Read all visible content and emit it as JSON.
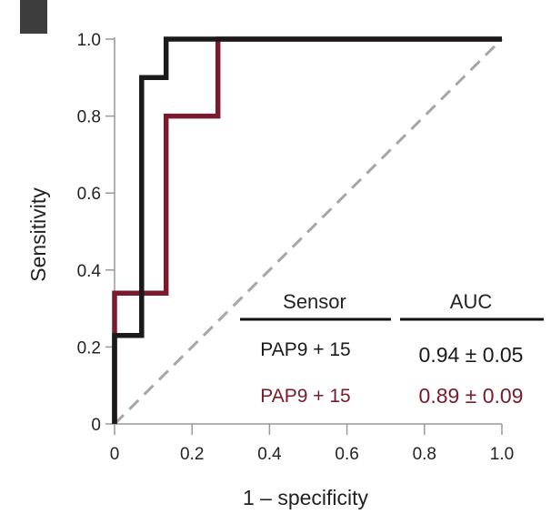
{
  "chart_data": {
    "type": "line",
    "title": "",
    "xlabel": "1 – specificity",
    "ylabel": "Sensitivity",
    "xlim": [
      0,
      1.0
    ],
    "ylim": [
      0,
      1.0
    ],
    "x_ticks": [
      0,
      0.2,
      0.4,
      0.6,
      0.8,
      1.0
    ],
    "x_tick_labels": [
      "0",
      "0.2",
      "0.4",
      "0.6",
      "0.8",
      "1.0"
    ],
    "y_ticks": [
      0,
      0.2,
      0.4,
      0.6,
      0.8,
      1.0
    ],
    "y_tick_labels": [
      "0",
      "0.2",
      "0.4",
      "0.6",
      "0.8",
      "1.0"
    ],
    "grid": false,
    "series": [
      {
        "color": "#1a1a1a",
        "x": [
          0,
          0,
          0.07,
          0.07,
          0.133,
          0.133,
          1.0
        ],
        "y": [
          0,
          0.23,
          0.23,
          0.9,
          0.9,
          1.0,
          1.0
        ]
      },
      {
        "color": "#7a1a2c",
        "x": [
          0,
          0,
          0.133,
          0.133,
          0.267,
          0.267,
          1.0
        ],
        "y": [
          0,
          0.34,
          0.34,
          0.8,
          0.8,
          1.0,
          1.0
        ]
      },
      {
        "color": "#a6a6a6",
        "style": "dashed",
        "x": [
          0,
          1.0
        ],
        "y": [
          0,
          1.0
        ]
      }
    ],
    "legend": {
      "placement": "bottom-right",
      "header_sensor": "Sensor",
      "header_auc": "AUC",
      "rows": [
        {
          "sensor": "PAP9 + 15",
          "auc": "0.94 ± 0.05",
          "color": "#1a1a1a"
        },
        {
          "sensor": "PAP9 + 15",
          "auc": "0.89 ± 0.09",
          "color": "#7a1a2c"
        }
      ]
    }
  },
  "colors": {
    "axis": "#999999",
    "corner_block": "#3d3d3d"
  }
}
